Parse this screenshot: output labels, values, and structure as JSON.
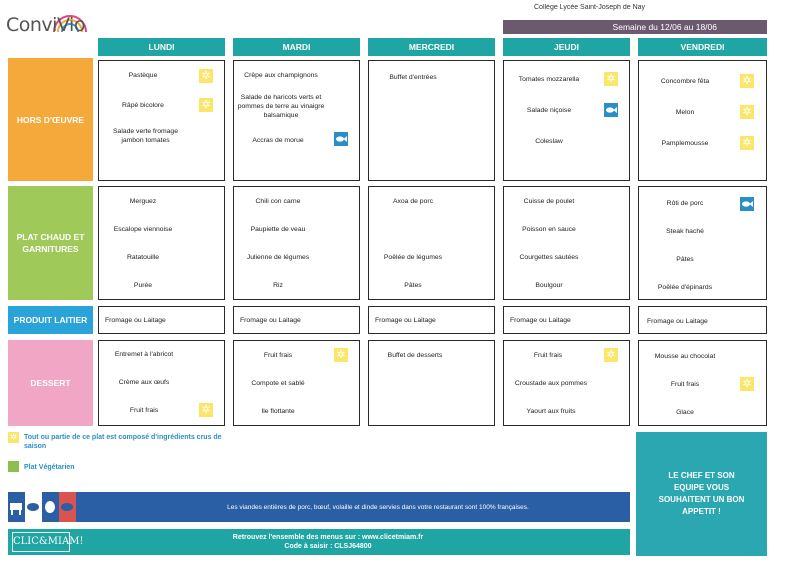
{
  "brand": {
    "name": "ConviVio"
  },
  "header": {
    "top_cut_text": "Collège Lycée Saint-Joseph de Nay",
    "week_label": "Semaine du 12/06 au 18/06"
  },
  "days": [
    "LUNDI",
    "MARDI",
    "MERCREDI",
    "JEUDI",
    "VENDREDI"
  ],
  "categories": {
    "hors": "HORS D'ŒUVRE",
    "plat": "PLAT CHAUD ET GARNITURES",
    "lait": "PRODUIT LAITIER",
    "dessert": "DESSERT"
  },
  "menu": {
    "hors": [
      [
        "Pastèque",
        "Râpé bicolore",
        "Salade verte fromage jambon tomates"
      ],
      [
        "Crêpe aux champignons",
        "Salade de haricots verts et pommes de terre au vinaigre balsamique",
        "Accras de morue"
      ],
      [
        "Buffet d'entrées"
      ],
      [
        "Tomates mozzarella",
        "Salade niçoise",
        "Coleslaw"
      ],
      [
        "Concombre fêta",
        "Melon",
        "Pamplemousse"
      ]
    ],
    "plat": [
      [
        "Merguez",
        "Escalope viennoise",
        "Ratatouille",
        "Purée"
      ],
      [
        "Chili con carne",
        "Paupiette de veau",
        "Julienne de légumes",
        "Riz"
      ],
      [
        "Axoa de porc",
        "Poêlée de légumes",
        "Pâtes"
      ],
      [
        "Cuisse de poulet",
        "Poisson en sauce",
        "Courgettes sautées",
        "Boulgour"
      ],
      [
        "Rôti de porc",
        "Steak haché",
        "Pâtes",
        "Poêlée d'épinards"
      ]
    ],
    "lait": [
      "Fromage ou Laitage",
      "Fromage ou Laitage",
      "Fromage ou Laitage",
      "Fromage ou Laitage",
      "Fromage ou Laitage"
    ],
    "dessert": [
      [
        "Entremet à l'abricot",
        "Crème aux œufs",
        "Fruit frais"
      ],
      [
        "Fruit frais",
        "Compote et sablé",
        "Ile flottante"
      ],
      [
        "Buffet de desserts"
      ],
      [
        "Fruit frais",
        "Croustade aux pommes",
        "Yaourt aux fruits"
      ],
      [
        "Mousse au chocolat",
        "Fruit frais",
        "Glace"
      ]
    ]
  },
  "icons": {
    "season": "sun-icon",
    "fish": "fish-icon",
    "vegetarian": "leaf-icon"
  },
  "colors": {
    "teal": "#1fa5a3",
    "orange": "#f5a93b",
    "green": "#9fca5a",
    "blue": "#2aa3d9",
    "pink": "#f0a6c4",
    "sun": "#fbe66a",
    "fish": "#2a8fc7"
  },
  "legend": {
    "season": "Tout ou partie de ce plat est composé d'ingrédients crus de saison",
    "vegetarian": "Plat Végétarien"
  },
  "chef_message": "LE CHEF ET SON EQUIPE VOUS SOUHAITENT UN BON APPETIT !",
  "footer": {
    "meat_origin": "Les viandes entières de porc, bœuf, volaille et dinde servies dans votre restaurant sont 100% françaises.",
    "clic_logo": "CLIC&MIAM!",
    "menus_link": "Retrouvez l'ensemble des menus sur : www.clicetmiam.fr",
    "code": "Code à saisir : CLSJ64800"
  }
}
